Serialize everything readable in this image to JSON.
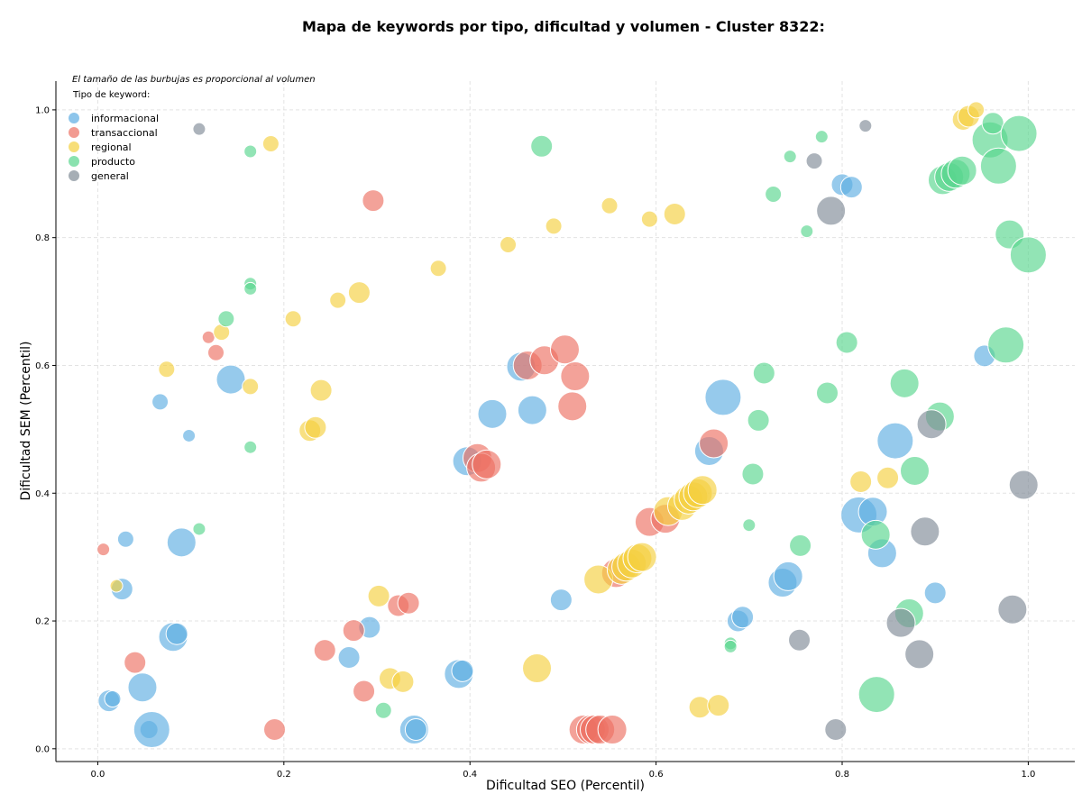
{
  "chart_data": {
    "type": "scatter",
    "title": "Mapa de keywords por tipo, dificultad y volumen - Cluster 8322:",
    "xlabel": "Dificultad SEO (Percentil)",
    "ylabel": "Dificultad SEM (Percentil)",
    "xlim": [
      -0.045,
      1.05
    ],
    "ylim": [
      -0.02,
      1.045
    ],
    "xticks": [
      0.0,
      0.2,
      0.4,
      0.6,
      0.8,
      1.0
    ],
    "yticks": [
      0.0,
      0.2,
      0.4,
      0.6,
      0.8,
      1.0
    ],
    "grid": true,
    "legend_placement": "top-left",
    "legend_note": "El tamaño de las burbujas es proporcional al volumen",
    "legend_title": "Tipo de keyword:",
    "series": [
      {
        "name": "informacional",
        "color": "#5dade2",
        "points": [
          [
            0.03,
            0.328,
            1
          ],
          [
            0.026,
            0.25,
            2
          ],
          [
            0.012,
            0.075,
            2
          ],
          [
            0.016,
            0.078,
            1
          ],
          [
            0.048,
            0.096,
            3
          ],
          [
            0.055,
            0.03,
            5
          ],
          [
            0.058,
            0.03,
            4
          ],
          [
            0.081,
            0.175,
            3
          ],
          [
            0.085,
            0.18,
            2
          ],
          [
            0.09,
            0.323,
            3
          ],
          [
            0.067,
            0.543,
            1
          ],
          [
            0.098,
            0.49,
            0
          ],
          [
            0.143,
            0.578,
            3
          ],
          [
            0.27,
            0.143,
            2
          ],
          [
            0.292,
            0.19,
            2
          ],
          [
            0.34,
            0.03,
            3
          ],
          [
            0.342,
            0.03,
            2
          ],
          [
            0.388,
            0.117,
            3
          ],
          [
            0.392,
            0.122,
            2
          ],
          [
            0.397,
            0.45,
            3
          ],
          [
            0.424,
            0.524,
            3
          ],
          [
            0.455,
            0.598,
            3
          ],
          [
            0.467,
            0.53,
            3
          ],
          [
            0.498,
            0.233,
            2
          ],
          [
            0.657,
            0.466,
            3
          ],
          [
            0.672,
            0.55,
            4
          ],
          [
            0.688,
            0.2,
            2
          ],
          [
            0.693,
            0.206,
            2
          ],
          [
            0.736,
            0.26,
            3
          ],
          [
            0.742,
            0.27,
            3
          ],
          [
            0.8,
            0.883,
            2
          ],
          [
            0.81,
            0.879,
            2
          ],
          [
            0.818,
            0.366,
            4
          ],
          [
            0.833,
            0.371,
            3
          ],
          [
            0.843,
            0.306,
            3
          ],
          [
            0.857,
            0.482,
            4
          ],
          [
            0.9,
            0.244,
            2
          ],
          [
            0.953,
            0.615,
            2
          ]
        ]
      },
      {
        "name": "transaccional",
        "color": "#ec7063",
        "points": [
          [
            0.006,
            0.312,
            0
          ],
          [
            0.04,
            0.135,
            2
          ],
          [
            0.119,
            0.644,
            0
          ],
          [
            0.127,
            0.62,
            1
          ],
          [
            0.19,
            0.03,
            2
          ],
          [
            0.244,
            0.154,
            2
          ],
          [
            0.275,
            0.185,
            2
          ],
          [
            0.286,
            0.09,
            2
          ],
          [
            0.296,
            0.858,
            2
          ],
          [
            0.323,
            0.224,
            2
          ],
          [
            0.334,
            0.228,
            2
          ],
          [
            0.408,
            0.455,
            3
          ],
          [
            0.412,
            0.44,
            3
          ],
          [
            0.418,
            0.445,
            3
          ],
          [
            0.462,
            0.6,
            3
          ],
          [
            0.48,
            0.608,
            3
          ],
          [
            0.502,
            0.625,
            3
          ],
          [
            0.51,
            0.536,
            3
          ],
          [
            0.513,
            0.583,
            3
          ],
          [
            0.522,
            0.03,
            3
          ],
          [
            0.53,
            0.03,
            3
          ],
          [
            0.534,
            0.03,
            3
          ],
          [
            0.54,
            0.03,
            3
          ],
          [
            0.553,
            0.03,
            3
          ],
          [
            0.557,
            0.275,
            3
          ],
          [
            0.593,
            0.355,
            3
          ],
          [
            0.61,
            0.36,
            3
          ],
          [
            0.662,
            0.478,
            3
          ]
        ]
      },
      {
        "name": "regional",
        "color": "#f4d03f",
        "points": [
          [
            0.02,
            0.255,
            0
          ],
          [
            0.074,
            0.594,
            1
          ],
          [
            0.133,
            0.652,
            1
          ],
          [
            0.164,
            0.567,
            1
          ],
          [
            0.186,
            0.947,
            1
          ],
          [
            0.21,
            0.673,
            1
          ],
          [
            0.228,
            0.498,
            2
          ],
          [
            0.234,
            0.503,
            2
          ],
          [
            0.24,
            0.561,
            2
          ],
          [
            0.258,
            0.702,
            1
          ],
          [
            0.281,
            0.714,
            2
          ],
          [
            0.302,
            0.239,
            2
          ],
          [
            0.314,
            0.11,
            2
          ],
          [
            0.328,
            0.105,
            2
          ],
          [
            0.366,
            0.752,
            1
          ],
          [
            0.441,
            0.789,
            1
          ],
          [
            0.472,
            0.126,
            3
          ],
          [
            0.49,
            0.818,
            1
          ],
          [
            0.538,
            0.265,
            3
          ],
          [
            0.55,
            0.85,
            1
          ],
          [
            0.563,
            0.28,
            3
          ],
          [
            0.568,
            0.285,
            3
          ],
          [
            0.574,
            0.29,
            3
          ],
          [
            0.58,
            0.298,
            3
          ],
          [
            0.585,
            0.3,
            3
          ],
          [
            0.593,
            0.829,
            1
          ],
          [
            0.613,
            0.372,
            3
          ],
          [
            0.62,
            0.837,
            2
          ],
          [
            0.628,
            0.38,
            3
          ],
          [
            0.635,
            0.39,
            3
          ],
          [
            0.64,
            0.395,
            3
          ],
          [
            0.645,
            0.4,
            3
          ],
          [
            0.65,
            0.405,
            3
          ],
          [
            0.647,
            0.065,
            2
          ],
          [
            0.667,
            0.068,
            2
          ],
          [
            0.82,
            0.418,
            2
          ],
          [
            0.849,
            0.424,
            2
          ],
          [
            0.93,
            0.985,
            2
          ],
          [
            0.936,
            0.99,
            2
          ],
          [
            0.944,
            1.0,
            1
          ]
        ]
      },
      {
        "name": "producto",
        "color": "#58d68d",
        "points": [
          [
            0.109,
            0.344,
            0
          ],
          [
            0.138,
            0.673,
            1
          ],
          [
            0.164,
            0.935,
            0
          ],
          [
            0.164,
            0.728,
            0
          ],
          [
            0.164,
            0.72,
            0
          ],
          [
            0.164,
            0.472,
            0
          ],
          [
            0.307,
            0.06,
            1
          ],
          [
            0.477,
            0.943,
            2
          ],
          [
            0.68,
            0.165,
            0
          ],
          [
            0.68,
            0.16,
            0
          ],
          [
            0.7,
            0.35,
            0
          ],
          [
            0.704,
            0.43,
            2
          ],
          [
            0.71,
            0.514,
            2
          ],
          [
            0.716,
            0.588,
            2
          ],
          [
            0.726,
            0.868,
            1
          ],
          [
            0.744,
            0.927,
            0
          ],
          [
            0.755,
            0.318,
            2
          ],
          [
            0.762,
            0.81,
            0
          ],
          [
            0.778,
            0.958,
            0
          ],
          [
            0.784,
            0.557,
            2
          ],
          [
            0.805,
            0.636,
            2
          ],
          [
            0.837,
            0.085,
            4
          ],
          [
            0.836,
            0.335,
            3
          ],
          [
            0.867,
            0.572,
            3
          ],
          [
            0.872,
            0.212,
            3
          ],
          [
            0.878,
            0.435,
            3
          ],
          [
            0.905,
            0.52,
            3
          ],
          [
            0.908,
            0.89,
            3
          ],
          [
            0.915,
            0.895,
            3
          ],
          [
            0.922,
            0.9,
            3
          ],
          [
            0.929,
            0.905,
            3
          ],
          [
            0.959,
            0.953,
            4
          ],
          [
            0.962,
            0.979,
            2
          ],
          [
            0.968,
            0.912,
            4
          ],
          [
            0.976,
            0.632,
            4
          ],
          [
            0.98,
            0.805,
            3
          ],
          [
            0.99,
            0.963,
            4
          ],
          [
            1.0,
            0.773,
            4
          ]
        ]
      },
      {
        "name": "general",
        "color": "#808b96",
        "points": [
          [
            0.109,
            0.97,
            0
          ],
          [
            0.77,
            0.92,
            1
          ],
          [
            0.788,
            0.842,
            3
          ],
          [
            0.793,
            0.03,
            2
          ],
          [
            0.825,
            0.975,
            0
          ],
          [
            0.754,
            0.17,
            2
          ],
          [
            0.863,
            0.197,
            3
          ],
          [
            0.883,
            0.148,
            3
          ],
          [
            0.889,
            0.34,
            3
          ],
          [
            0.896,
            0.508,
            3
          ],
          [
            0.983,
            0.218,
            3
          ],
          [
            0.995,
            0.413,
            3
          ]
        ]
      }
    ]
  }
}
